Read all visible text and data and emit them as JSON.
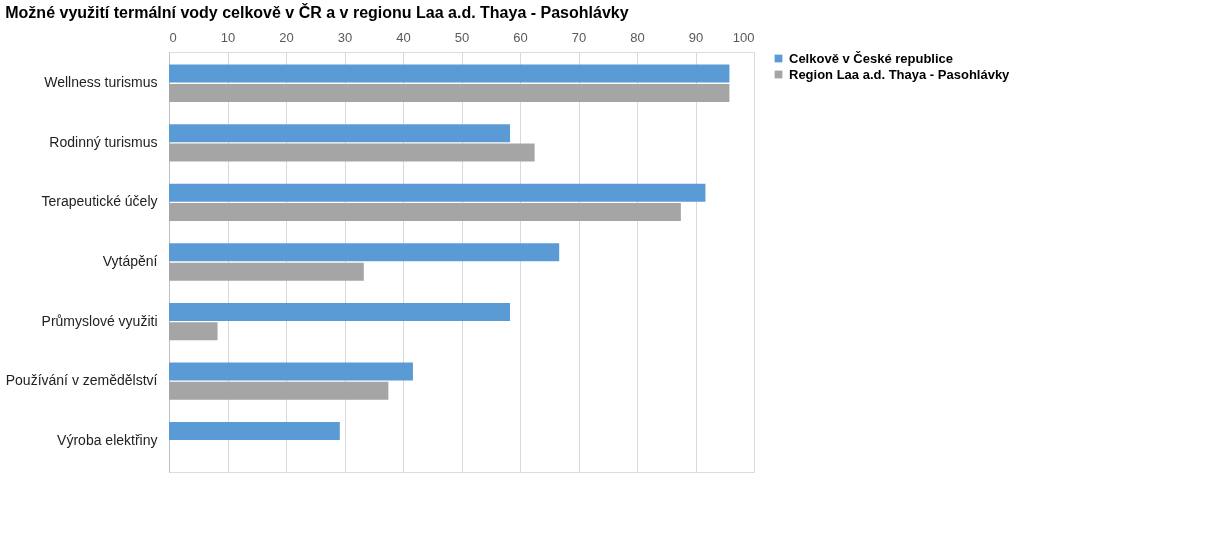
{
  "chart_data": {
    "type": "bar",
    "orientation": "horizontal",
    "title": "Možné využití termální vody celkově v ČR a v regionu Laa a.d. Thaya - Pasohlávky",
    "categories": [
      "Wellness turismus",
      "Rodinný turismus",
      "Terapeutické účely",
      "Vytápění",
      "Průmyslové využiti",
      "Používání v zemědělství",
      "Výroba elektřiny"
    ],
    "series": [
      {
        "name": "Celkově v České republice",
        "color": "#5b9bd5",
        "values": [
          95.8,
          58.3,
          91.7,
          66.7,
          58.3,
          41.7,
          29.2
        ]
      },
      {
        "name": "Region Laa a.d. Thaya - Pasohlávky",
        "color": "#a5a5a5",
        "values": [
          95.8,
          62.5,
          87.5,
          33.3,
          8.3,
          37.5,
          null
        ]
      }
    ],
    "xlim": [
      0,
      100
    ],
    "xticks": [
      0,
      10,
      20,
      30,
      40,
      50,
      60,
      70,
      80,
      90,
      100
    ],
    "grid": "x",
    "legend": "right"
  }
}
